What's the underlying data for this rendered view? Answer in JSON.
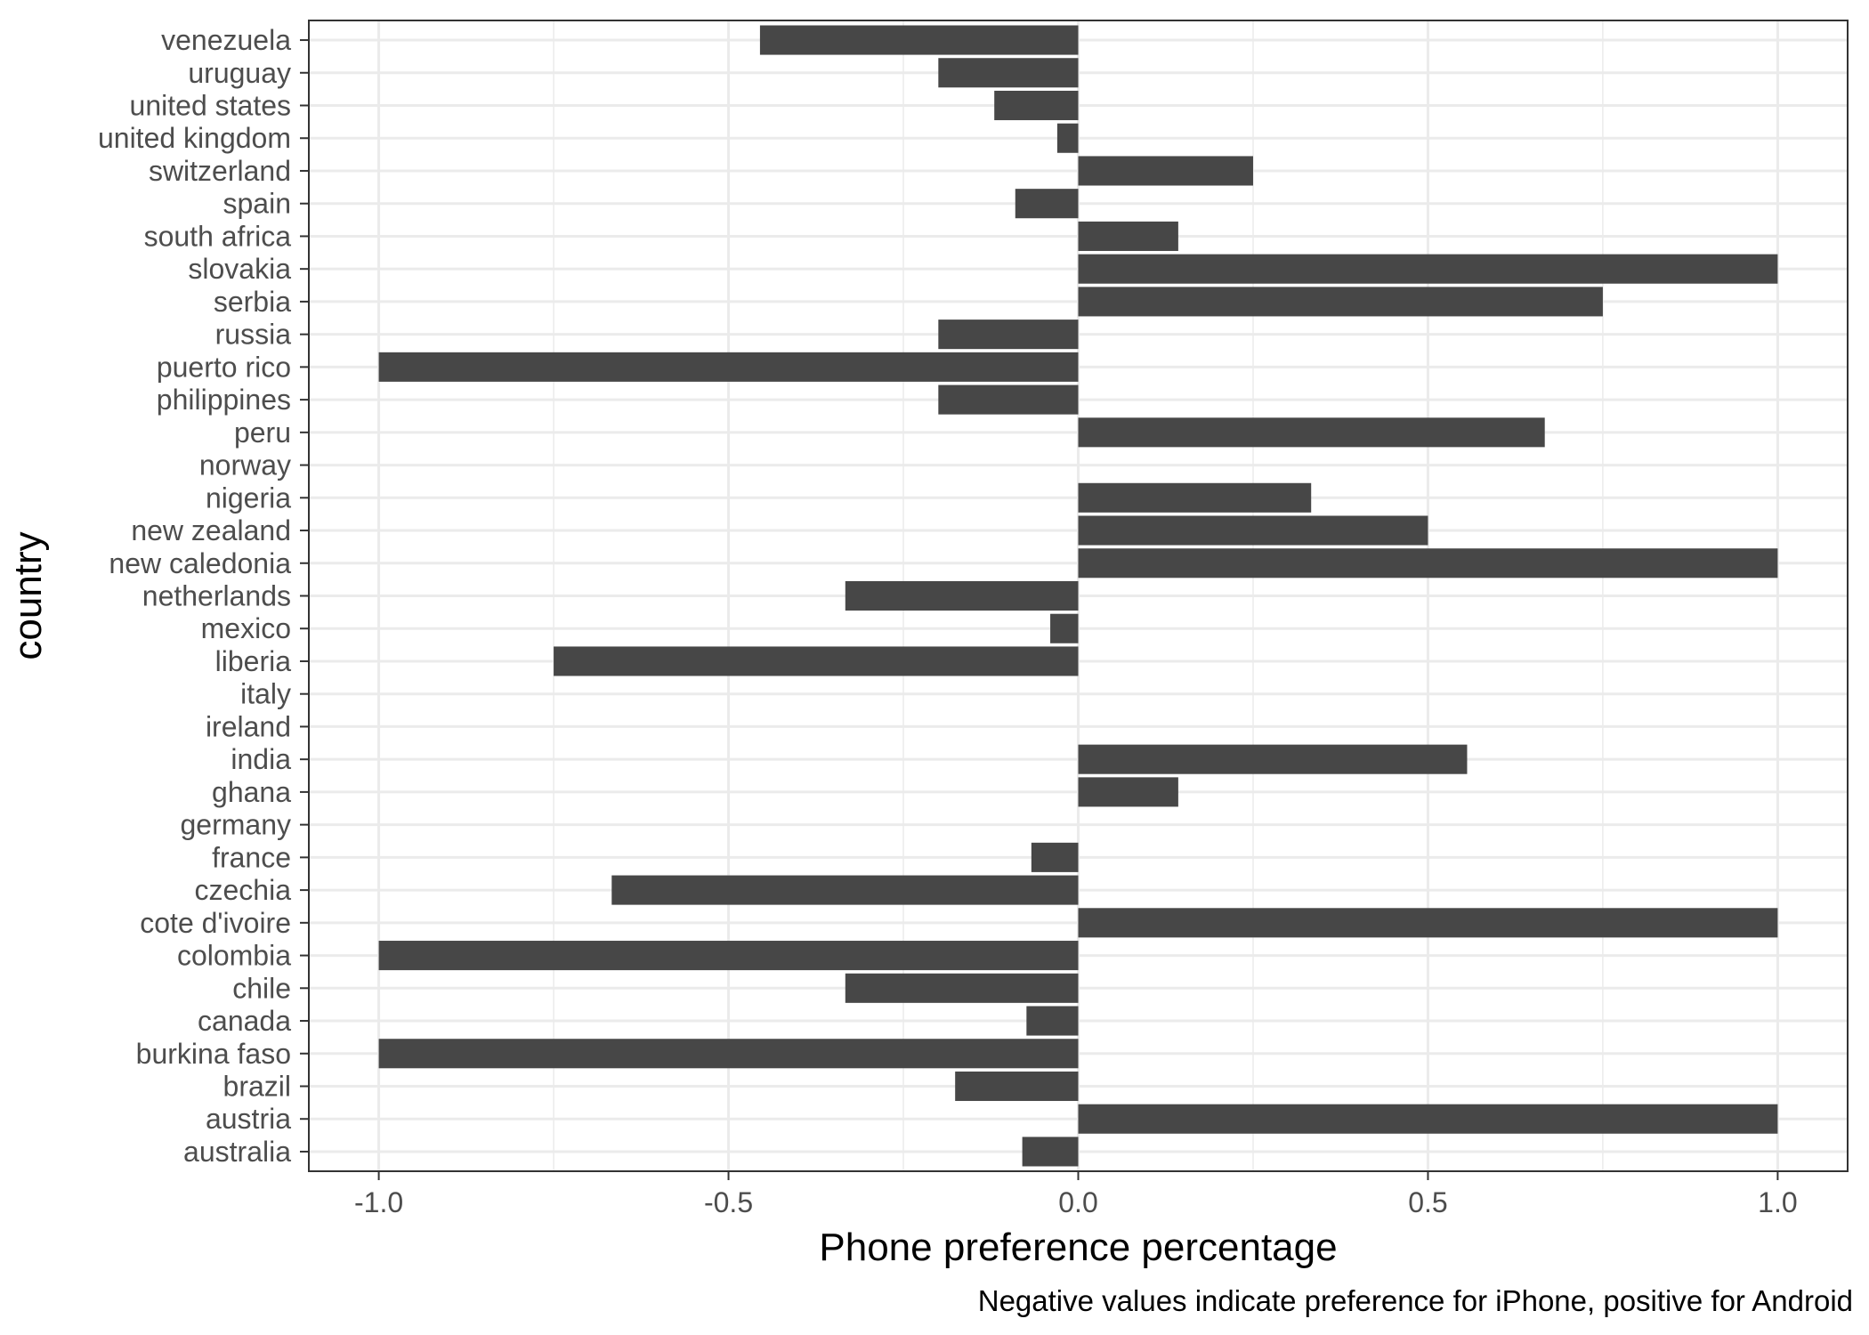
{
  "chart_data": {
    "type": "bar",
    "orientation": "horizontal",
    "categories": [
      "venezuela",
      "uruguay",
      "united states",
      "united kingdom",
      "switzerland",
      "spain",
      "south africa",
      "slovakia",
      "serbia",
      "russia",
      "puerto rico",
      "philippines",
      "peru",
      "norway",
      "nigeria",
      "new zealand",
      "new caledonia",
      "netherlands",
      "mexico",
      "liberia",
      "italy",
      "ireland",
      "india",
      "ghana",
      "germany",
      "france",
      "czechia",
      "cote d'ivoire",
      "colombia",
      "chile",
      "canada",
      "burkina faso",
      "brazil",
      "austria",
      "australia"
    ],
    "values": [
      -0.455,
      -0.2,
      -0.12,
      -0.03,
      0.25,
      -0.09,
      0.143,
      1.0,
      0.75,
      -0.2,
      -1.0,
      -0.2,
      0.667,
      0.0,
      0.333,
      0.5,
      1.0,
      -0.333,
      -0.04,
      -0.75,
      0.0,
      0.0,
      0.556,
      0.143,
      0.0,
      -0.067,
      -0.667,
      1.0,
      -1.0,
      -0.333,
      -0.074,
      -1.0,
      -0.176,
      1.0,
      -0.08
    ],
    "xlabel": "Phone preference percentage",
    "ylabel": "country",
    "caption": "Negative values indicate preference for iPhone, positive for Android",
    "xlim": [
      -1.1,
      1.1
    ],
    "xticks": [
      -1.0,
      -0.5,
      0.0,
      0.5,
      1.0
    ],
    "xtick_labels": [
      "-1.0",
      "-0.5",
      "0.0",
      "0.5",
      "1.0"
    ],
    "grid": true,
    "bar_color": "#474747",
    "grid_color": "#ebebeb"
  }
}
